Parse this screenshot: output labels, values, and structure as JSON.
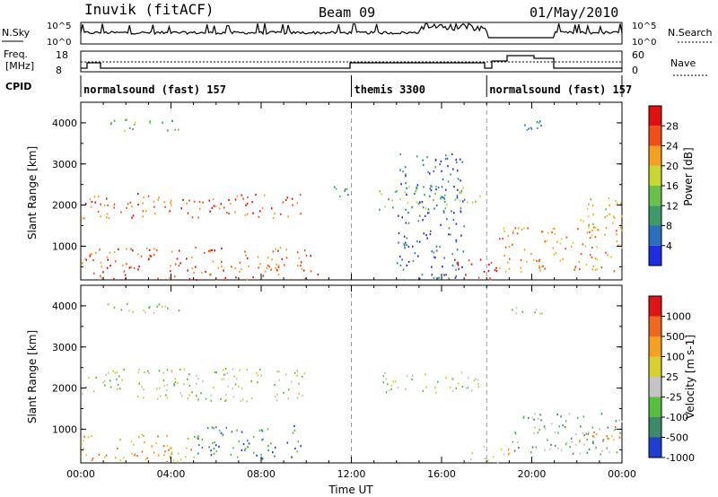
{
  "header": {
    "station": "Inuvik (fitACF)",
    "beam": "Beam 09",
    "date": "01/May/2010"
  },
  "top_panels": {
    "nsky_label": "N.Sky",
    "nsky_ticks": [
      "10^5",
      "10^0"
    ],
    "nsearch_label": "N.Search",
    "nsearch_ticks": [
      "10^5",
      "10^0"
    ],
    "freq_label_1": "Freq.",
    "freq_label_2": "[MHz]",
    "freq_ticks": [
      "18",
      "8"
    ],
    "nave_label": "Nave",
    "nave_ticks": [
      "60",
      "0"
    ],
    "cpid_label": "CPID",
    "cpid_segments": [
      {
        "label": "normalsound (fast) 157",
        "start_hour": 0
      },
      {
        "label": "themis 3300",
        "start_hour": 12
      },
      {
        "label": "normalsound (fast) 157",
        "start_hour": 18
      }
    ]
  },
  "chart_data": [
    {
      "type": "heatmap",
      "title": "",
      "xlabel": "",
      "ylabel": "Slant Range [km]",
      "yticks": [
        "1000",
        "2000",
        "3000",
        "4000"
      ],
      "ylim": [
        180,
        4500
      ],
      "colorbar_label": "Power [dB]",
      "colorbar_ticks": [
        "4",
        "8",
        "12",
        "16",
        "20",
        "24",
        "28"
      ],
      "colorbar_colors": [
        "#1e2de0",
        "#2b6fc0",
        "#3f9a6a",
        "#67c24a",
        "#c8d830",
        "#f5a020",
        "#f05018",
        "#e01010"
      ],
      "scatter_bands_km": [
        {
          "t0": 0.0,
          "t1": 10.0,
          "r0": 1700,
          "r1": 2300,
          "level": 6
        },
        {
          "t0": 0.0,
          "t1": 10.5,
          "r0": 200,
          "r1": 1000,
          "level": 6
        },
        {
          "t0": 11.0,
          "t1": 12.0,
          "r0": 2100,
          "r1": 2500,
          "level": 2
        },
        {
          "t0": 13.2,
          "t1": 17.7,
          "r0": 1900,
          "r1": 2500,
          "level": 3
        },
        {
          "t0": 14.0,
          "t1": 17.0,
          "r0": 200,
          "r1": 3300,
          "level": 1
        },
        {
          "t0": 16.5,
          "t1": 18.7,
          "r0": 200,
          "r1": 700,
          "level": 7
        },
        {
          "t0": 18.5,
          "t1": 24.0,
          "r0": 400,
          "r1": 1500,
          "level": 5
        },
        {
          "t0": 22.0,
          "t1": 24.0,
          "r0": 1300,
          "r1": 2200,
          "level": 4
        },
        {
          "t0": 1.0,
          "t1": 4.5,
          "r0": 3800,
          "r1": 4100,
          "level": 3
        },
        {
          "t0": 19.0,
          "t1": 20.5,
          "r0": 3700,
          "r1": 4100,
          "level": 2
        }
      ]
    },
    {
      "type": "heatmap",
      "title": "",
      "xlabel": "Time UT",
      "ylabel": "Slant Range [km]",
      "xticks": [
        "00:00",
        "04:00",
        "08:00",
        "12:00",
        "16:00",
        "20:00",
        "00:00"
      ],
      "yticks": [
        "1000",
        "2000",
        "3000",
        "4000"
      ],
      "ylim": [
        180,
        4500
      ],
      "xlim_hours": [
        0,
        24
      ],
      "colorbar_label": "Velocity [m s-1]",
      "colorbar_ticks": [
        "1000",
        "500",
        "100",
        "25",
        "-25",
        "-100",
        "-500",
        "-1000"
      ],
      "colorbar_colors": [
        "#1f3fd0",
        "#3c8a6c",
        "#55c040",
        "#c4c4c4",
        "#d8d030",
        "#f5a020",
        "#f06820",
        "#e01414"
      ],
      "scatter_bands_km": [
        {
          "t0": 0.0,
          "t1": 10.0,
          "r0": 1700,
          "r1": 2500,
          "level": 3
        },
        {
          "t0": 0.0,
          "t1": 5.0,
          "r0": 200,
          "r1": 900,
          "level": 5
        },
        {
          "t0": 5.0,
          "t1": 10.0,
          "r0": 300,
          "r1": 1100,
          "level": 1
        },
        {
          "t0": 13.0,
          "t1": 17.8,
          "r0": 1900,
          "r1": 2400,
          "level": 3
        },
        {
          "t0": 17.0,
          "t1": 19.0,
          "r0": 200,
          "r1": 600,
          "level": 4
        },
        {
          "t0": 19.0,
          "t1": 24.0,
          "r0": 400,
          "r1": 1400,
          "level": 2
        },
        {
          "t0": 22.0,
          "t1": 24.0,
          "r0": 700,
          "r1": 1100,
          "level": 5
        },
        {
          "t0": 1.0,
          "t1": 4.5,
          "r0": 3800,
          "r1": 4100,
          "level": 3
        },
        {
          "t0": 19.0,
          "t1": 20.5,
          "r0": 3800,
          "r1": 4100,
          "level": 3
        }
      ]
    }
  ]
}
